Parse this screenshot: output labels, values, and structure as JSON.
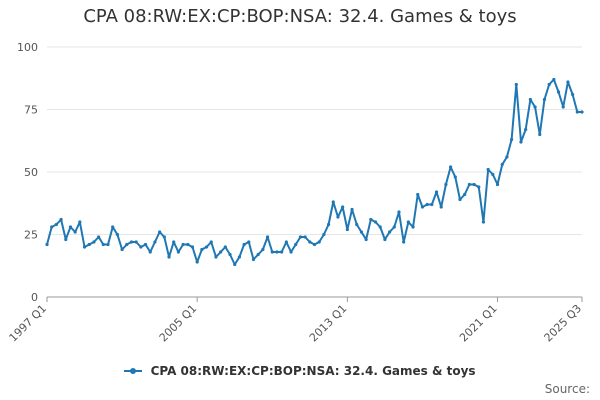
{
  "chart_data": {
    "type": "line",
    "title": "CPA 08:RW:EX:CP:BOP:NSA: 32.4. Games & toys",
    "xlabel": "",
    "ylabel": "",
    "ylim": [
      0,
      100
    ],
    "yticks": [
      0,
      25,
      50,
      75,
      100
    ],
    "xtick_labels": [
      "1997 Q1",
      "2005 Q1",
      "2013 Q1",
      "2021 Q1",
      "2025 Q3"
    ],
    "xtick_indices": [
      0,
      32,
      64,
      96,
      114
    ],
    "series": [
      {
        "name": "CPA 08:RW:EX:CP:BOP:NSA: 32.4. Games & toys",
        "color": "#1f77b4",
        "x_start": "1997 Q1",
        "values": [
          21,
          28,
          29,
          31,
          23,
          28,
          26,
          30,
          20,
          21,
          22,
          24,
          21,
          21,
          28,
          25,
          19,
          21,
          22,
          22,
          20,
          21,
          18,
          22,
          26,
          24,
          16,
          22,
          18,
          21,
          21,
          20,
          14,
          19,
          20,
          22,
          16,
          18,
          20,
          17,
          13,
          16,
          21,
          22,
          15,
          17,
          19,
          24,
          18,
          18,
          18,
          22,
          18,
          21,
          24,
          24,
          22,
          21,
          22,
          25,
          29,
          38,
          32,
          36,
          27,
          35,
          29,
          26,
          23,
          31,
          30,
          28,
          23,
          26,
          28,
          34,
          22,
          30,
          28,
          41,
          36,
          37,
          37,
          42,
          36,
          45,
          52,
          48,
          39,
          41,
          45,
          45,
          44,
          30,
          51,
          49,
          45,
          53,
          56,
          63,
          85,
          62,
          67,
          79,
          76,
          65,
          79,
          85,
          87,
          82,
          76,
          86,
          81,
          74,
          74
        ]
      }
    ],
    "legend": "bottom-center",
    "source_label": "Source:"
  }
}
